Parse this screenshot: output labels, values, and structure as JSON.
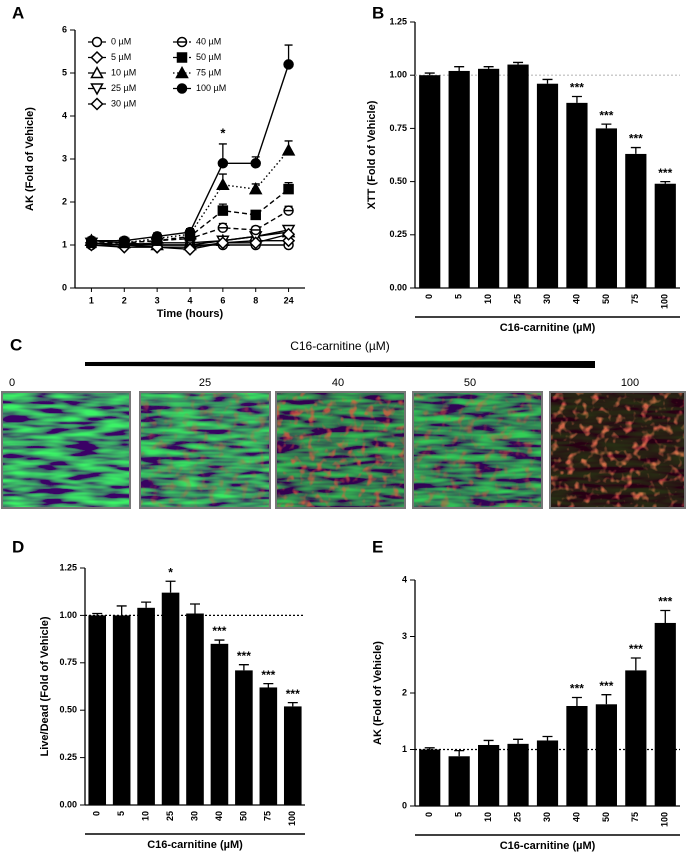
{
  "chart_data": [
    {
      "type": "line",
      "panel": "A",
      "xlabel": "Time (hours)",
      "ylabel": "AK (Fold of Vehicle)",
      "categories": [
        "1",
        "2",
        "3",
        "4",
        "6",
        "8",
        "24"
      ],
      "ylim": [
        0,
        6
      ],
      "yticks": [
        0,
        1,
        2,
        3,
        4,
        5,
        6
      ],
      "legend": "upper left",
      "series": [
        {
          "name": "0 µM",
          "color": "#000000",
          "marker": "circle",
          "filled": false,
          "dash": "solid",
          "values": [
            1,
            1,
            1,
            1,
            1,
            1,
            1
          ]
        },
        {
          "name": "5 µM",
          "color": "#000000",
          "marker": "diamond",
          "filled": false,
          "dash": "solid",
          "values": [
            1.05,
            1.0,
            0.95,
            0.95,
            1.05,
            1.1,
            1.1
          ]
        },
        {
          "name": "10 µM",
          "color": "#000000",
          "marker": "triangle-up",
          "filled": false,
          "dash": "solid",
          "values": [
            1.1,
            1.05,
            1.0,
            1.0,
            1.1,
            1.2,
            1.3
          ]
        },
        {
          "name": "25 µM",
          "color": "#000000",
          "marker": "triangle-down",
          "filled": false,
          "dash": "solid",
          "values": [
            1.05,
            1.0,
            1.05,
            1.05,
            1.1,
            1.2,
            1.35
          ]
        },
        {
          "name": "30 µM",
          "color": "#000000",
          "marker": "diamond",
          "filled": false,
          "dash": "solid",
          "values": [
            1.0,
            0.95,
            0.95,
            0.9,
            1.05,
            1.05,
            1.25
          ]
        },
        {
          "name": "40 µM",
          "color": "#000000",
          "marker": "circle-bar",
          "filled": false,
          "dash": "dashed",
          "values": [
            1.1,
            1.05,
            1.1,
            1.15,
            1.4,
            1.35,
            1.8
          ],
          "errors": [
            0.05,
            0.05,
            0.05,
            0.05,
            0.1,
            0.08,
            0.1
          ]
        },
        {
          "name": "50 µM",
          "color": "#000000",
          "marker": "square",
          "filled": true,
          "dash": "dashed",
          "values": [
            1.05,
            1.05,
            1.1,
            1.2,
            1.8,
            1.7,
            2.3
          ],
          "errors": [
            0.05,
            0.05,
            0.05,
            0.05,
            0.15,
            0.08,
            0.15
          ]
        },
        {
          "name": "75 µM",
          "color": "#000000",
          "marker": "triangle-up",
          "filled": true,
          "dash": "dotted",
          "values": [
            1.1,
            1.05,
            1.15,
            1.25,
            2.4,
            2.3,
            3.2
          ],
          "errors": [
            0.05,
            0.05,
            0.05,
            0.05,
            0.25,
            0.12,
            0.22
          ]
        },
        {
          "name": "100 µM",
          "color": "#000000",
          "marker": "circle",
          "filled": true,
          "dash": "solid",
          "values": [
            1.1,
            1.1,
            1.2,
            1.3,
            2.9,
            2.9,
            5.2
          ],
          "errors": [
            0.08,
            0.08,
            0.08,
            0.08,
            0.45,
            0.15,
            0.45
          ],
          "significance": [
            null,
            null,
            null,
            null,
            "*",
            null,
            null
          ]
        }
      ]
    },
    {
      "type": "bar",
      "panel": "B",
      "xlabel": "C16-carnitine (µM)",
      "ylabel": "XTT (Fold of Vehicle)",
      "color": "#000000",
      "categories": [
        "0",
        "5",
        "10",
        "25",
        "30",
        "40",
        "50",
        "75",
        "100"
      ],
      "values": [
        1.0,
        1.02,
        1.03,
        1.05,
        0.96,
        0.87,
        0.75,
        0.63,
        0.49
      ],
      "errors": [
        0.01,
        0.02,
        0.01,
        0.01,
        0.02,
        0.03,
        0.02,
        0.03,
        0.01
      ],
      "significance": [
        null,
        null,
        null,
        null,
        null,
        "***",
        "***",
        "***",
        "***"
      ],
      "ylim": [
        0,
        1.25
      ],
      "yticks": [
        {
          "value": 0,
          "label": "0.00"
        },
        0.25,
        {
          "value": 0.5,
          "label": "0.50"
        },
        0.75,
        {
          "value": 1,
          "label": "1.00"
        },
        1.25
      ],
      "reference_line": 1,
      "reference_color": "#bbbbbb"
    },
    {
      "type": "bar",
      "panel": "D",
      "xlabel": "C16-carnitine (µM)",
      "ylabel": "Live/Dead (Fold of Vehicle)",
      "color": "#000000",
      "categories": [
        "0",
        "5",
        "10",
        "25",
        "30",
        "40",
        "50",
        "75",
        "100"
      ],
      "values": [
        1.0,
        1.0,
        1.04,
        1.12,
        1.01,
        0.85,
        0.71,
        0.62,
        0.52
      ],
      "errors": [
        0.01,
        0.05,
        0.03,
        0.06,
        0.05,
        0.02,
        0.03,
        0.02,
        0.02
      ],
      "significance": [
        null,
        null,
        null,
        "*",
        null,
        "***",
        "***",
        "***",
        "***"
      ],
      "ylim": [
        0,
        1.25
      ],
      "yticks": [
        {
          "value": 0,
          "label": "0.00"
        },
        0.25,
        {
          "value": 0.5,
          "label": "0.50"
        },
        0.75,
        {
          "value": 1,
          "label": "1.00"
        },
        1.25
      ],
      "reference_line": 1,
      "reference_color": "#000000"
    },
    {
      "type": "bar",
      "panel": "E",
      "xlabel": "C16-carnitine (µM)",
      "ylabel": "AK  (Fold of Vehicle)",
      "color": "#000000",
      "categories": [
        "0",
        "5",
        "10",
        "25",
        "30",
        "40",
        "50",
        "75",
        "100"
      ],
      "values": [
        1.0,
        0.88,
        1.08,
        1.1,
        1.16,
        1.77,
        1.8,
        2.4,
        3.24
      ],
      "errors": [
        0.03,
        0.1,
        0.08,
        0.08,
        0.07,
        0.15,
        0.17,
        0.22,
        0.22
      ],
      "significance": [
        null,
        null,
        null,
        null,
        null,
        "***",
        "***",
        "***",
        "***"
      ],
      "ylim": [
        0,
        4
      ],
      "yticks": [
        0,
        1,
        2,
        3,
        4
      ],
      "reference_line": 1,
      "reference_color": "#000000"
    }
  ],
  "figure_c": {
    "panel": "C",
    "label": "C16-carnitine (µM)",
    "concentrations": [
      "0",
      "25",
      "40",
      "50",
      "100"
    ]
  }
}
